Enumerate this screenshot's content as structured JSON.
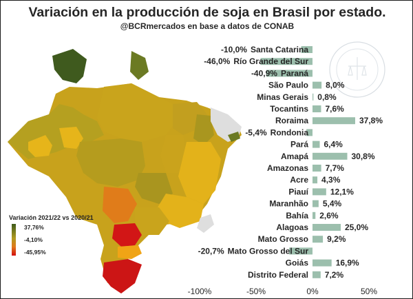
{
  "header": {
    "title": "Variación en la producción de soja en Brasil por estado.",
    "subtitle": "@BCRmercados en base a datos de CONAB"
  },
  "legend": {
    "title": "Variación 2021/22 vs 2020/21",
    "max_label": "37,76%",
    "mid_label": "-4,10%",
    "min_label": "-45,95%"
  },
  "colors": {
    "bar": "#9cbfad",
    "map_green_dark": "#3f5a1e",
    "map_olive": "#6b7a23",
    "map_ochre": "#b3a220",
    "map_gold": "#d0a916",
    "map_yellow": "#e6b51a",
    "map_orange": "#e07c1a",
    "map_red": "#cc1515",
    "map_gray": "#dedede"
  },
  "watermark": "BOLSA DE COMERCIO DE ROSARIO",
  "chart_data": {
    "type": "bar",
    "orientation": "horizontal",
    "categories": [
      "Santa Catarina",
      "Río Grande del Sur",
      "Paraná",
      "São Paulo",
      "Minas Gerais",
      "Tocantins",
      "Roraima",
      "Rondonia",
      "Pará",
      "Amapá",
      "Amazonas",
      "Acre",
      "Piauí",
      "Maranhão",
      "Bahía",
      "Alagoas",
      "Mato Grosso",
      "Mato Grosso del Sur",
      "Goiás",
      "Distrito Federal"
    ],
    "values": [
      -10.0,
      -46.0,
      -40.9,
      8.0,
      0.8,
      7.6,
      37.8,
      -5.4,
      6.4,
      30.8,
      7.7,
      4.3,
      12.1,
      5.4,
      2.6,
      25.0,
      9.2,
      -20.7,
      16.9,
      7.2
    ],
    "value_labels": [
      "-10,0%",
      "-46,0%",
      "-40,9%",
      "8,0%",
      "0,8%",
      "7,6%",
      "37,8%",
      "-5,4%",
      "6,4%",
      "30,8%",
      "7,7%",
      "4,3%",
      "12,1%",
      "5,4%",
      "2,6%",
      "25,0%",
      "9,2%",
      "-20,7%",
      "16,9%",
      "7,2%"
    ],
    "xlim": [
      -100,
      50
    ],
    "xticks": [
      -100,
      -50,
      0,
      50
    ],
    "xtick_labels": [
      "-100%",
      "-50%",
      "0%",
      "50%"
    ]
  }
}
